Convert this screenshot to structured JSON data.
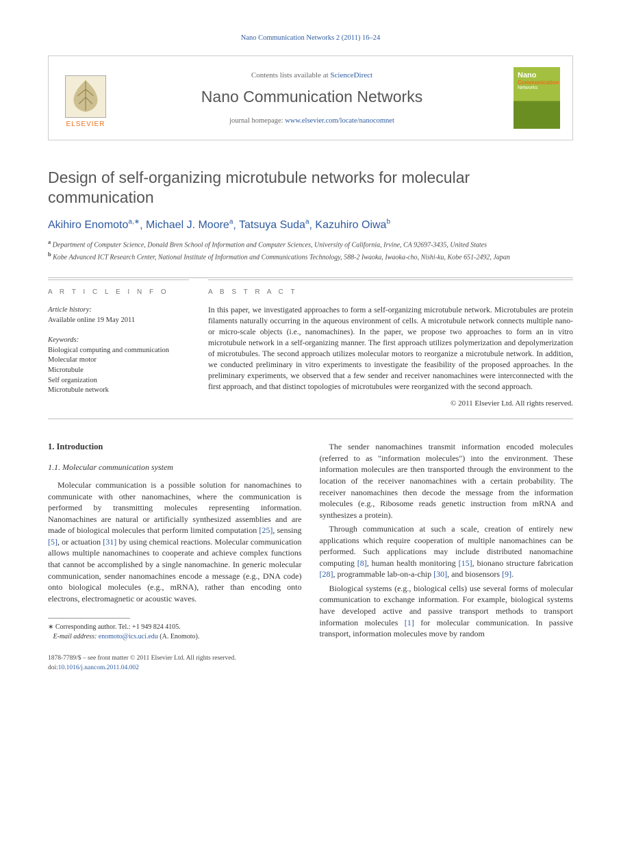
{
  "running_header": "Nano Communication Networks 2 (2011) 16–24",
  "masthead": {
    "contents_prefix": "Contents lists available at ",
    "contents_link": "ScienceDirect",
    "journal_name": "Nano Communication Networks",
    "homepage_prefix": "journal homepage: ",
    "homepage_url": "www.elsevier.com/locate/nanocomnet",
    "elsevier_word": "ELSEVIER",
    "cover_t1": "Nano",
    "cover_t2": "Communication",
    "cover_t3": "Networks"
  },
  "title": "Design of self-organizing microtubule networks for molecular communication",
  "authors_html": [
    {
      "name": "Akihiro Enomoto",
      "sup": "a,∗"
    },
    {
      "name": "Michael J. Moore",
      "sup": "a"
    },
    {
      "name": "Tatsuya Suda",
      "sup": "a"
    },
    {
      "name": "Kazuhiro Oiwa",
      "sup": "b"
    }
  ],
  "affiliations": [
    {
      "sup": "a",
      "text": "Department of Computer Science, Donald Bren School of Information and Computer Sciences, University of California, Irvine, CA 92697-3435, United States"
    },
    {
      "sup": "b",
      "text": "Kobe Advanced ICT Research Center, National Institute of Information and Communications Technology, 588-2 Iwaoka, Iwaoka-cho, Nishi-ku, Kobe 651-2492, Japan"
    }
  ],
  "info": {
    "label": "A R T I C L E   I N F O",
    "history_head": "Article history:",
    "history_line": "Available online 19 May 2011",
    "keywords_head": "Keywords:",
    "keywords": [
      "Biological computing and communication",
      "Molecular motor",
      "Microtubule",
      "Self organization",
      "Microtubule network"
    ]
  },
  "abstract": {
    "label": "A B S T R A C T",
    "text": "In this paper, we investigated approaches to form a self-organizing microtubule network. Microtubules are protein filaments naturally occurring in the aqueous environment of cells. A microtubule network connects multiple nano- or micro-scale objects (i.e., nanomachines). In the paper, we propose two approaches to form an in vitro microtubule network in a self-organizing manner. The first approach utilizes polymerization and depolymerization of microtubules. The second approach utilizes molecular motors to reorganize a microtubule network. In addition, we conducted preliminary in vitro experiments to investigate the feasibility of the proposed approaches. In the preliminary experiments, we observed that a few sender and receiver nanomachines were interconnected with the first approach, and that distinct topologies of microtubules were reorganized with the second approach.",
    "copyright": "© 2011 Elsevier Ltd. All rights reserved."
  },
  "body": {
    "h1": "1. Introduction",
    "h11": "1.1. Molecular communication system",
    "p1": "Molecular communication is a possible solution for nanomachines to communicate with other nanomachines, where the communication is performed by transmitting molecules representing information. Nanomachines are natural or artificially synthesized assemblies and are made of biological molecules that perform limited computation [25], sensing [5], or actuation [31] by using chemical reactions. Molecular communication allows multiple nanomachines to cooperate and achieve complex functions that cannot be accomplished by a single nanomachine. In generic molecular communication, sender nanomachines encode a message (e.g., DNA code) onto biological molecules (e.g., mRNA), rather than encoding onto electrons, electromagnetic or acoustic waves.",
    "p2": "The sender nanomachines transmit information encoded molecules (referred to as \"information molecules\") into the environment. These information molecules are then transported through the environment to the location of the receiver nanomachines with a certain probability. The receiver nanomachines then decode the message from the information molecules (e.g., Ribosome reads genetic instruction from mRNA and synthesizes a protein).",
    "p3": "Through communication at such a scale, creation of entirely new applications which require cooperation of multiple nanomachines can be performed. Such applications may include distributed nanomachine computing [8], human health monitoring [15], bionano structure fabrication [28], programmable lab-on-a-chip [30], and biosensors [9].",
    "p4": "Biological systems (e.g., biological cells) use several forms of molecular communication to exchange information. For example, biological systems have developed active and passive transport methods to transport information molecules [1] for molecular communication. In passive transport, information molecules move by random"
  },
  "footnotes": {
    "corr_label": "∗",
    "corr_text": "Corresponding author. Tel.: +1 949 824 4105.",
    "email_label": "E-mail address:",
    "email": "enomoto@ics.uci.edu",
    "email_who": "(A. Enomoto)."
  },
  "bottom": {
    "issn_line": "1878-7789/$ – see front matter © 2011 Elsevier Ltd. All rights reserved.",
    "doi_label": "doi:",
    "doi": "10.1016/j.nancom.2011.04.002"
  },
  "colors": {
    "link": "#2d5aa0",
    "elsevier_orange": "#e9711c",
    "rule": "#bbbbbb",
    "text": "#333333"
  }
}
